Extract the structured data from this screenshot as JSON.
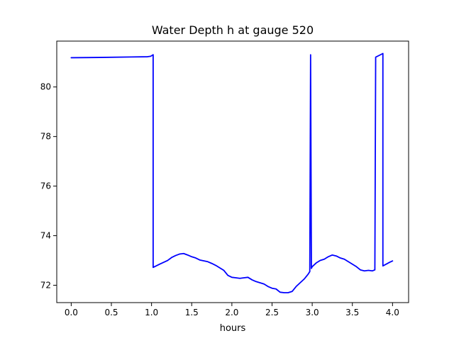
{
  "chart_data": {
    "type": "line",
    "title": "Water Depth h at gauge 520",
    "xlabel": "hours",
    "ylabel": "",
    "xlim": [
      -0.18,
      4.2
    ],
    "ylim": [
      71.3,
      81.85
    ],
    "xticks": [
      {
        "value": 0.0,
        "label": "0.0"
      },
      {
        "value": 0.5,
        "label": "0.5"
      },
      {
        "value": 1.0,
        "label": "1.0"
      },
      {
        "value": 1.5,
        "label": "1.5"
      },
      {
        "value": 2.0,
        "label": "2.0"
      },
      {
        "value": 2.5,
        "label": "2.5"
      },
      {
        "value": 3.0,
        "label": "3.0"
      },
      {
        "value": 3.5,
        "label": "3.5"
      },
      {
        "value": 4.0,
        "label": "4.0"
      }
    ],
    "yticks": [
      {
        "value": 72,
        "label": "72"
      },
      {
        "value": 74,
        "label": "74"
      },
      {
        "value": 76,
        "label": "76"
      },
      {
        "value": 78,
        "label": "78"
      },
      {
        "value": 80,
        "label": "80"
      }
    ],
    "grid": false,
    "legend": "none",
    "series": [
      {
        "color": "#0000ff",
        "points": [
          [
            0.0,
            81.18
          ],
          [
            0.35,
            81.19
          ],
          [
            0.75,
            81.21
          ],
          [
            0.95,
            81.22
          ],
          [
            0.99,
            81.24
          ],
          [
            1.02,
            81.3
          ],
          [
            1.02,
            72.72
          ],
          [
            1.1,
            72.85
          ],
          [
            1.2,
            73.0
          ],
          [
            1.25,
            73.12
          ],
          [
            1.3,
            73.2
          ],
          [
            1.35,
            73.26
          ],
          [
            1.4,
            73.28
          ],
          [
            1.45,
            73.22
          ],
          [
            1.5,
            73.15
          ],
          [
            1.55,
            73.1
          ],
          [
            1.6,
            73.02
          ],
          [
            1.7,
            72.95
          ],
          [
            1.75,
            72.88
          ],
          [
            1.8,
            72.8
          ],
          [
            1.85,
            72.7
          ],
          [
            1.9,
            72.6
          ],
          [
            1.95,
            72.4
          ],
          [
            2.0,
            72.32
          ],
          [
            2.05,
            72.3
          ],
          [
            2.1,
            72.28
          ],
          [
            2.15,
            72.3
          ],
          [
            2.2,
            72.32
          ],
          [
            2.25,
            72.22
          ],
          [
            2.3,
            72.15
          ],
          [
            2.35,
            72.1
          ],
          [
            2.4,
            72.05
          ],
          [
            2.45,
            71.95
          ],
          [
            2.5,
            71.88
          ],
          [
            2.55,
            71.85
          ],
          [
            2.6,
            71.72
          ],
          [
            2.65,
            71.7
          ],
          [
            2.7,
            71.7
          ],
          [
            2.75,
            71.75
          ],
          [
            2.8,
            71.95
          ],
          [
            2.85,
            72.1
          ],
          [
            2.9,
            72.25
          ],
          [
            2.95,
            72.45
          ],
          [
            2.97,
            72.55
          ],
          [
            2.98,
            81.3
          ],
          [
            2.99,
            72.68
          ],
          [
            3.0,
            72.75
          ],
          [
            3.05,
            72.9
          ],
          [
            3.1,
            73.0
          ],
          [
            3.15,
            73.05
          ],
          [
            3.2,
            73.15
          ],
          [
            3.25,
            73.22
          ],
          [
            3.3,
            73.18
          ],
          [
            3.35,
            73.1
          ],
          [
            3.4,
            73.05
          ],
          [
            3.45,
            72.95
          ],
          [
            3.5,
            72.85
          ],
          [
            3.55,
            72.75
          ],
          [
            3.6,
            72.62
          ],
          [
            3.65,
            72.58
          ],
          [
            3.7,
            72.6
          ],
          [
            3.75,
            72.58
          ],
          [
            3.78,
            72.62
          ],
          [
            3.79,
            81.2
          ],
          [
            3.85,
            81.3
          ],
          [
            3.88,
            81.35
          ],
          [
            3.88,
            72.78
          ],
          [
            3.92,
            72.85
          ],
          [
            3.96,
            72.92
          ],
          [
            4.0,
            72.98
          ]
        ]
      }
    ]
  }
}
